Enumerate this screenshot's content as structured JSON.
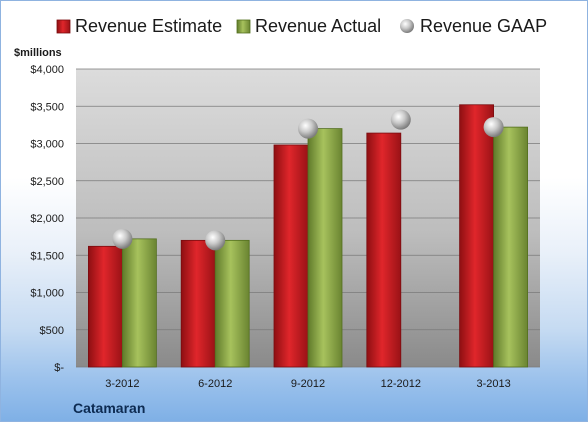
{
  "chart_data": {
    "type": "bar",
    "categories": [
      "3-2012",
      "6-2012",
      "9-2012",
      "12-2012",
      "3-2013"
    ],
    "series": [
      {
        "name": "Revenue Estimate",
        "kind": "bar",
        "color": "#c0171b",
        "values": [
          1620,
          1700,
          2980,
          3140,
          3520
        ]
      },
      {
        "name": "Revenue Actual",
        "kind": "bar",
        "color": "#8faa4b",
        "values": [
          1720,
          1700,
          3200,
          null,
          3220
        ]
      },
      {
        "name": "Revenue GAAP",
        "kind": "marker",
        "color": "#b8b8b8",
        "values": [
          1720,
          1700,
          3200,
          3320,
          3220
        ]
      }
    ],
    "ylabel": "$millions",
    "ylim": [
      0,
      4000
    ],
    "yticks": [
      {
        "value": 0,
        "label": "$-"
      },
      {
        "value": 500,
        "label": "$500"
      },
      {
        "value": 1000,
        "label": "$1,000"
      },
      {
        "value": 1500,
        "label": "$1,500"
      },
      {
        "value": 2000,
        "label": "$2,000"
      },
      {
        "value": 2500,
        "label": "$2,500"
      },
      {
        "value": 3000,
        "label": "$3,000"
      },
      {
        "value": 3500,
        "label": "$3,500"
      },
      {
        "value": 4000,
        "label": "$4,000"
      }
    ],
    "grid": true,
    "legend_position": "top",
    "footer_label": "Catamaran"
  }
}
